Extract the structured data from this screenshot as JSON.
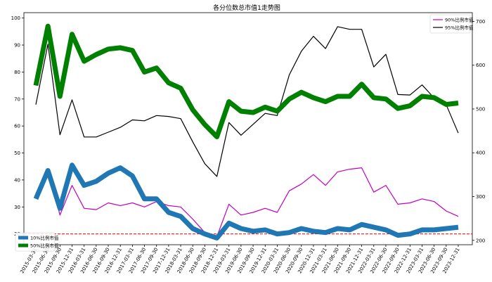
{
  "chart_data": {
    "type": "line",
    "title": "各分位数总市值1走势图",
    "x": [
      "2015-03-31",
      "2015-06-30",
      "2015-09-30",
      "2015-12-31",
      "2016-03-31",
      "2016-06-30",
      "2016-09-30",
      "2016-12-31",
      "2017-03-31",
      "2017-06-30",
      "2017-09-30",
      "2017-12-31",
      "2018-03-31",
      "2018-06-30",
      "2018-09-30",
      "2018-12-31",
      "2019-03-31",
      "2019-06-30",
      "2019-09-30",
      "2019-12-31",
      "2020-03-31",
      "2020-06-30",
      "2020-09-30",
      "2020-12-31",
      "2021-03-31",
      "2021-06-30",
      "2021-09-30",
      "2021-12-31",
      "2022-03-31",
      "2022-06-30",
      "2022-09-30",
      "2022-12-31",
      "2023-03-31",
      "2023-06-30",
      "2023-09-30",
      "2023-12-31"
    ],
    "left_axis": {
      "ticks": [
        20,
        30,
        40,
        50,
        60,
        70,
        80,
        90,
        100
      ],
      "ylim": [
        16,
        102
      ],
      "series": [
        {
          "name": "10%比例市值",
          "color": "#1f77b4",
          "width": 7,
          "values": [
            33,
            43.5,
            29.5,
            45.5,
            38,
            39.5,
            42.5,
            44.5,
            41.5,
            33,
            33,
            28,
            26.5,
            22,
            20,
            18.5,
            24,
            22,
            21,
            21.5,
            20,
            20.5,
            22,
            21,
            20.5,
            22,
            21.5,
            23.5,
            22.5,
            21.5,
            19.5,
            20,
            21.5,
            21.5,
            22,
            22.5
          ]
        },
        {
          "name": "50%比例市值",
          "color": "#008000",
          "width": 7,
          "values": [
            75,
            97,
            71,
            94,
            84,
            86.5,
            88.5,
            89,
            88,
            80,
            81.5,
            76,
            74,
            66,
            60.5,
            56,
            69,
            65.5,
            65,
            67,
            65.5,
            70,
            72.5,
            70.5,
            69,
            71,
            71,
            75.5,
            70.5,
            70,
            66.5,
            67.5,
            71,
            70.5,
            68,
            68.5
          ]
        },
        {
          "name": "90%比例市值",
          "color": "#c000c0",
          "width": 1.2,
          "values": [
            35,
            44,
            27,
            38,
            29.5,
            29,
            31.5,
            30.5,
            31.5,
            30,
            32,
            30.5,
            30,
            25.5,
            20.5,
            19,
            31,
            27,
            28,
            29.5,
            28,
            36,
            38.5,
            42,
            38,
            43,
            44,
            44.5,
            35.5,
            38,
            31,
            31.5,
            33,
            32,
            28.5,
            26.5
          ]
        }
      ]
    },
    "right_axis": {
      "ticks": [
        200,
        300,
        400,
        500,
        600,
        700
      ],
      "ylim": [
        190,
        720
      ],
      "series": [
        {
          "name": "95%比例市值",
          "color": "#000000",
          "width": 1.2,
          "values": [
            510,
            648,
            441,
            521,
            436,
            436,
            447,
            458,
            475,
            473,
            485,
            483,
            478,
            425,
            375,
            346,
            469,
            440,
            465,
            490,
            485,
            578,
            632,
            666,
            638,
            688,
            682,
            682,
            596,
            625,
            533,
            532,
            555,
            525,
            510,
            445
          ]
        }
      ]
    },
    "reference_line": {
      "value": 20,
      "axis": "left",
      "color": "#ff0000",
      "style": "dashed"
    },
    "legends": [
      {
        "position": "top-right",
        "entries": [
          "90%比例市值",
          "95%比例市值"
        ]
      },
      {
        "position": "bottom-left",
        "entries": [
          "10%比例市值",
          "50%比例市值"
        ]
      }
    ],
    "grid": false
  }
}
